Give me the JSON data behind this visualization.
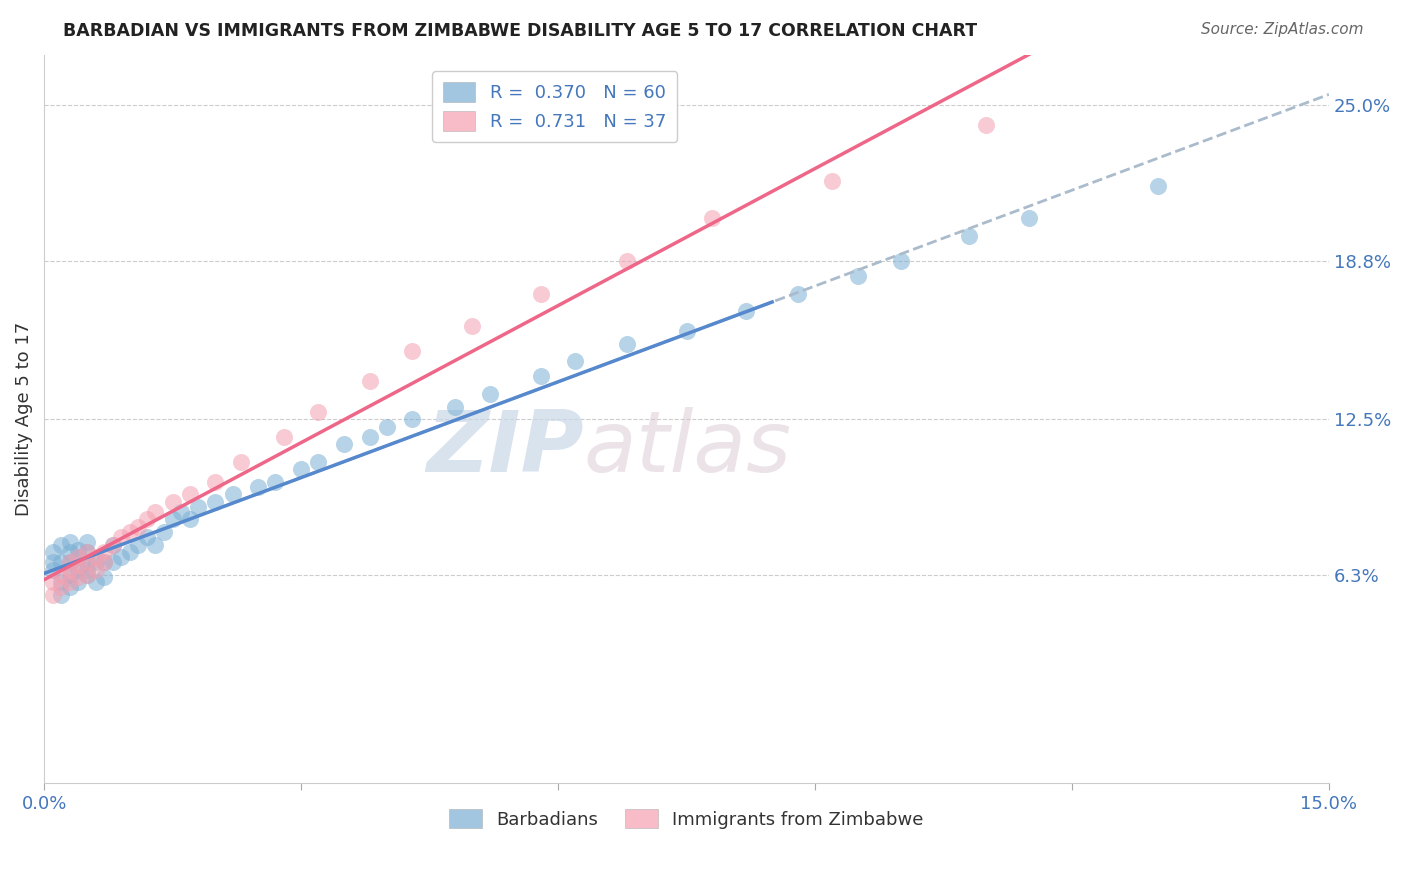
{
  "title": "BARBADIAN VS IMMIGRANTS FROM ZIMBABWE DISABILITY AGE 5 TO 17 CORRELATION CHART",
  "source": "Source: ZipAtlas.com",
  "ylabel": "Disability Age 5 to 17",
  "xlim": [
    0.0,
    0.15
  ],
  "ylim": [
    -0.02,
    0.27
  ],
  "xtick_pos": [
    0.0,
    0.03,
    0.06,
    0.09,
    0.12,
    0.15
  ],
  "xtick_labels": [
    "0.0%",
    "",
    "",
    "",
    "",
    "15.0%"
  ],
  "yticks_right": [
    0.063,
    0.125,
    0.188,
    0.25
  ],
  "ytick_right_labels": [
    "6.3%",
    "12.5%",
    "18.8%",
    "25.0%"
  ],
  "legend_r1": "R =  0.370",
  "legend_n1": "N = 60",
  "legend_r2": "R =  0.731",
  "legend_n2": "N = 37",
  "blue_color": "#7BAFD4",
  "pink_color": "#F4A0B0",
  "blue_line_color": "#5588CC",
  "pink_line_color": "#EE6688",
  "dashed_line_color": "#AABBCC",
  "watermark": "ZIPatlas",
  "blue_x": [
    0.001,
    0.001,
    0.001,
    0.002,
    0.002,
    0.002,
    0.002,
    0.003,
    0.003,
    0.003,
    0.003,
    0.003,
    0.004,
    0.004,
    0.004,
    0.004,
    0.005,
    0.005,
    0.005,
    0.005,
    0.005,
    0.006,
    0.006,
    0.007,
    0.007,
    0.008,
    0.008,
    0.009,
    0.01,
    0.011,
    0.012,
    0.013,
    0.014,
    0.015,
    0.016,
    0.017,
    0.018,
    0.02,
    0.022,
    0.025,
    0.027,
    0.03,
    0.032,
    0.035,
    0.038,
    0.04,
    0.043,
    0.048,
    0.052,
    0.058,
    0.062,
    0.068,
    0.075,
    0.082,
    0.088,
    0.095,
    0.1,
    0.108,
    0.115,
    0.13
  ],
  "blue_y": [
    0.065,
    0.068,
    0.072,
    0.055,
    0.06,
    0.068,
    0.075,
    0.058,
    0.063,
    0.068,
    0.072,
    0.076,
    0.06,
    0.065,
    0.07,
    0.073,
    0.063,
    0.065,
    0.068,
    0.072,
    0.076,
    0.06,
    0.068,
    0.062,
    0.068,
    0.068,
    0.075,
    0.07,
    0.072,
    0.075,
    0.078,
    0.075,
    0.08,
    0.085,
    0.088,
    0.085,
    0.09,
    0.092,
    0.095,
    0.098,
    0.1,
    0.105,
    0.108,
    0.115,
    0.118,
    0.122,
    0.125,
    0.13,
    0.135,
    0.142,
    0.148,
    0.155,
    0.16,
    0.168,
    0.175,
    0.182,
    0.188,
    0.198,
    0.205,
    0.218
  ],
  "pink_x": [
    0.001,
    0.001,
    0.002,
    0.002,
    0.003,
    0.003,
    0.003,
    0.004,
    0.004,
    0.004,
    0.005,
    0.005,
    0.005,
    0.006,
    0.006,
    0.007,
    0.007,
    0.008,
    0.009,
    0.01,
    0.011,
    0.012,
    0.013,
    0.015,
    0.017,
    0.02,
    0.023,
    0.028,
    0.032,
    0.038,
    0.043,
    0.05,
    0.058,
    0.068,
    0.078,
    0.092,
    0.11
  ],
  "pink_y": [
    0.055,
    0.06,
    0.058,
    0.063,
    0.06,
    0.065,
    0.068,
    0.062,
    0.067,
    0.07,
    0.063,
    0.068,
    0.072,
    0.065,
    0.07,
    0.068,
    0.072,
    0.075,
    0.078,
    0.08,
    0.082,
    0.085,
    0.088,
    0.092,
    0.095,
    0.1,
    0.108,
    0.118,
    0.128,
    0.14,
    0.152,
    0.162,
    0.175,
    0.188,
    0.205,
    0.22,
    0.242
  ]
}
